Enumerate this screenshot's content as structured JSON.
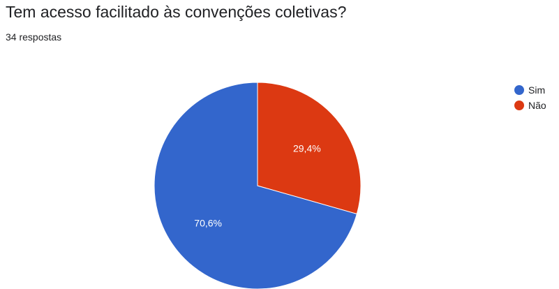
{
  "header": {
    "title": "Tem acesso facilitado às convenções coletivas?",
    "subtitle": "34 respostas"
  },
  "chart_data": {
    "type": "pie",
    "title": "Tem acesso facilitado às convenções coletivas?",
    "legend_position": "right",
    "slices": [
      {
        "label": "Sim",
        "value": 70.6,
        "display": "70,6%",
        "color": "#3366cc"
      },
      {
        "label": "Não",
        "value": 29.4,
        "display": "29,4%",
        "color": "#dc3912"
      }
    ]
  }
}
